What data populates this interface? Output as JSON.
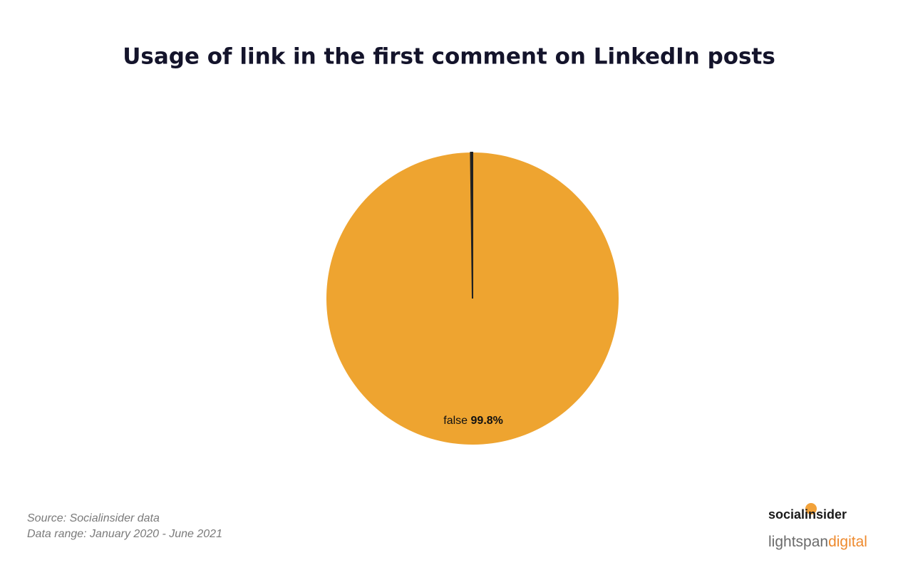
{
  "chart_data": {
    "type": "pie",
    "title": "Usage of link in the first comment on LinkedIn posts",
    "categories": [
      "false",
      null
    ],
    "values": [
      99.8,
      0.2
    ],
    "value_labels": [
      "99.8%",
      null
    ],
    "colors": [
      "#eea430",
      "#222222"
    ]
  },
  "footer": {
    "source": "Source: Socialinsider data",
    "range": "Data range: January 2020 - June 2021"
  },
  "logos": {
    "socialinsider": "socialinsider",
    "lightspan": "lightspan",
    "digital": "digital"
  }
}
